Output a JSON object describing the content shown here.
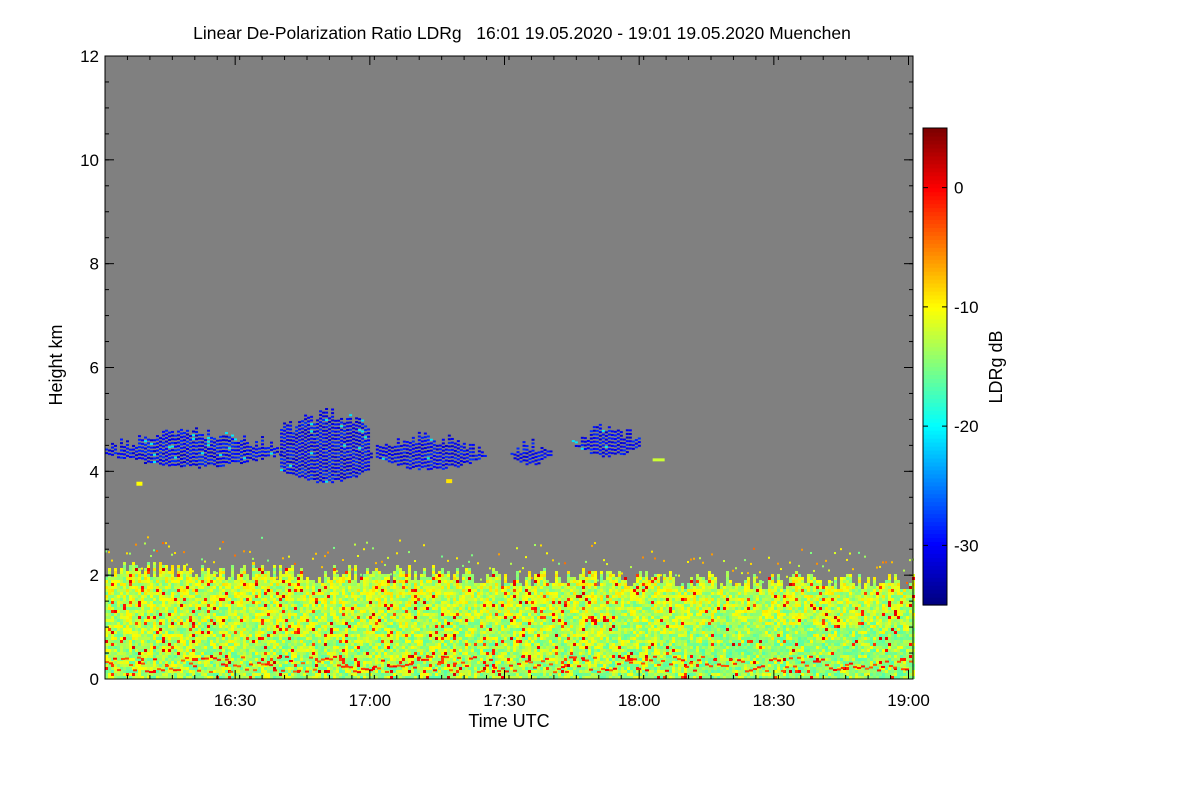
{
  "chart_data": {
    "type": "heatmap",
    "title": "Linear De-Polarization Ratio LDRg   16:01 19.05.2020 - 19:01 19.05.2020 Muenchen",
    "xlabel": "Time UTC",
    "ylabel": "Height km",
    "colorbar_label": "LDRg dB",
    "x_range_min": [
      961,
      1141
    ],
    "x_ticks": [
      {
        "label": "16:30",
        "value_min": 990
      },
      {
        "label": "17:00",
        "value_min": 1020
      },
      {
        "label": "17:30",
        "value_min": 1050
      },
      {
        "label": "18:00",
        "value_min": 1080
      },
      {
        "label": "18:30",
        "value_min": 1110
      },
      {
        "label": "19:00",
        "value_min": 1140
      }
    ],
    "ylim": [
      0,
      12
    ],
    "y_ticks": [
      "0",
      "2",
      "4",
      "6",
      "8",
      "10",
      "12"
    ],
    "colorbar_range": [
      -35,
      5
    ],
    "colorbar_ticks": [
      {
        "label": "0",
        "value": 0
      },
      {
        "label": "-10",
        "value": -10
      },
      {
        "label": "-20",
        "value": -20
      },
      {
        "label": "-30",
        "value": -30
      }
    ],
    "background_color": "#808080",
    "features": [
      {
        "name": "cloud layer",
        "t_start_min": 961,
        "t_end_min": 1083,
        "height_km": [
          3.7,
          5.2
        ],
        "ldr_db": -30
      },
      {
        "name": "boundary layer aerosol",
        "t_start_min": 961,
        "t_end_min": 1141,
        "height_km": [
          0,
          2.5
        ],
        "ldr_db": -12
      }
    ]
  }
}
